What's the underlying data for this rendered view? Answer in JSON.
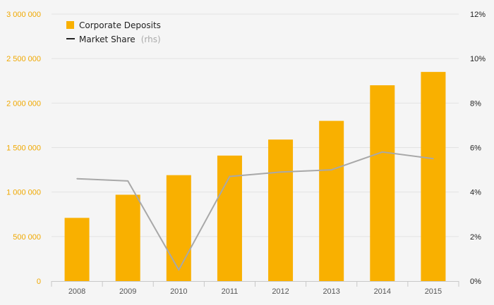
{
  "chart_data": {
    "type": "bar",
    "categories": [
      "2008",
      "2009",
      "2010",
      "2011",
      "2012",
      "2013",
      "2014",
      "2015"
    ],
    "series": [
      {
        "name": "Corporate Deposits",
        "kind": "bar",
        "axis": "left",
        "color": "#f9b000",
        "values": [
          710000,
          970000,
          1190000,
          1410000,
          1590000,
          1800000,
          2200000,
          2350000
        ]
      },
      {
        "name": "Market Share",
        "name_suffix": "(rhs)",
        "kind": "line",
        "axis": "right",
        "color": "#a8a8a8",
        "values": [
          4.6,
          4.5,
          0.5,
          4.7,
          4.9,
          5.0,
          5.8,
          5.5
        ]
      }
    ],
    "y_left": {
      "min": 0,
      "max": 3000000,
      "ticks": [
        0,
        500000,
        1000000,
        1500000,
        2000000,
        2500000,
        3000000
      ],
      "tick_labels": [
        "0",
        "500 000",
        "1 000 000",
        "1 500 000",
        "2 000 000",
        "2 500 000",
        "3 000 000"
      ]
    },
    "y_right": {
      "min": 0,
      "max": 12,
      "ticks": [
        0,
        2,
        4,
        6,
        8,
        10,
        12
      ],
      "tick_labels": [
        "0%",
        "2%",
        "4%",
        "6%",
        "8%",
        "10%",
        "12%"
      ]
    },
    "legend": {
      "position": "top-left",
      "items": [
        {
          "label": "Corporate Deposits",
          "suffix": "",
          "symbol": "square",
          "color": "#f9b000"
        },
        {
          "label": "Market Share",
          "suffix": "(rhs)",
          "symbol": "line",
          "color": "#222222"
        }
      ]
    },
    "grid": true,
    "title": "",
    "xlabel": "",
    "ylabel": ""
  }
}
